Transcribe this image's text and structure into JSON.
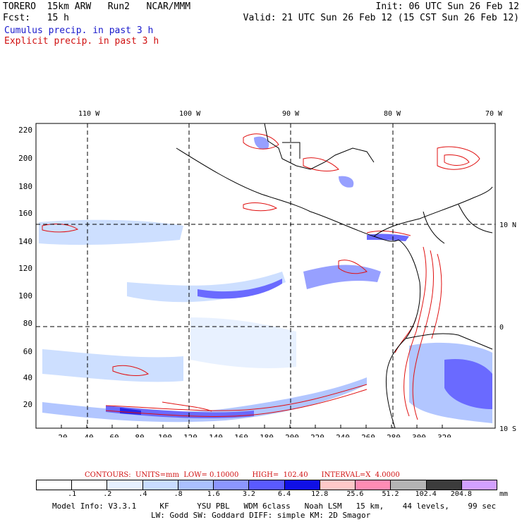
{
  "header": {
    "line1_left": "TORERO  15km ARW   Run2   NCAR/MMM",
    "line1_right": "Init: 06 UTC Sun 26 Feb 12",
    "line2_left": "Fcst:   15 h",
    "line2_right": "Valid: 21 UTC Sun 26 Feb 12 (15 CST Sun 26 Feb 12)",
    "cumulus": "Cumulus precip. in past 3 h",
    "explicit": "Explicit precip. in past 3 h"
  },
  "map": {
    "top_lon_labels": [
      "110 W",
      "100 W",
      "90 W",
      "80 W",
      "70 W"
    ],
    "right_lat_labels": [
      "10 N",
      "0",
      "10 S"
    ],
    "x_ticks": [
      "20",
      "40",
      "60",
      "80",
      "100",
      "120",
      "140",
      "160",
      "180",
      "200",
      "220",
      "240",
      "260",
      "280",
      "300",
      "320"
    ],
    "y_ticks": [
      "20",
      "40",
      "60",
      "80",
      "100",
      "120",
      "140",
      "160",
      "180",
      "200",
      "220"
    ]
  },
  "legend": {
    "title": "CONTOURS:  UNITS=mm  LOW= 0.10000      HIGH=  102.40      INTERVAL=X  4.0000",
    "scale_labels": [
      ".1",
      ".2",
      ".4",
      ".8",
      "1.6",
      "3.2",
      "6.4",
      "12.8",
      "25.6",
      "51.2",
      "102.4",
      "204.8"
    ],
    "scale_colors": [
      "#ffffff",
      "#ffffff",
      "#e6f0ff",
      "#c8dcff",
      "#aac0ff",
      "#8c96ff",
      "#5a5aff",
      "#1010e6",
      "#ffc8c8",
      "#ff8cb4",
      "#b4b4b4",
      "#3c3c3c",
      "#d2a0ff"
    ],
    "unit": "mm",
    "model_info_1": "Model Info: V3.3.1     KF      YSU PBL   WDM 6class   Noah LSM   15 km,    44 levels,    99 sec",
    "model_info_2": "LW: Godd SW: Goddard DIFF: simple KM: 2D Smagor"
  }
}
